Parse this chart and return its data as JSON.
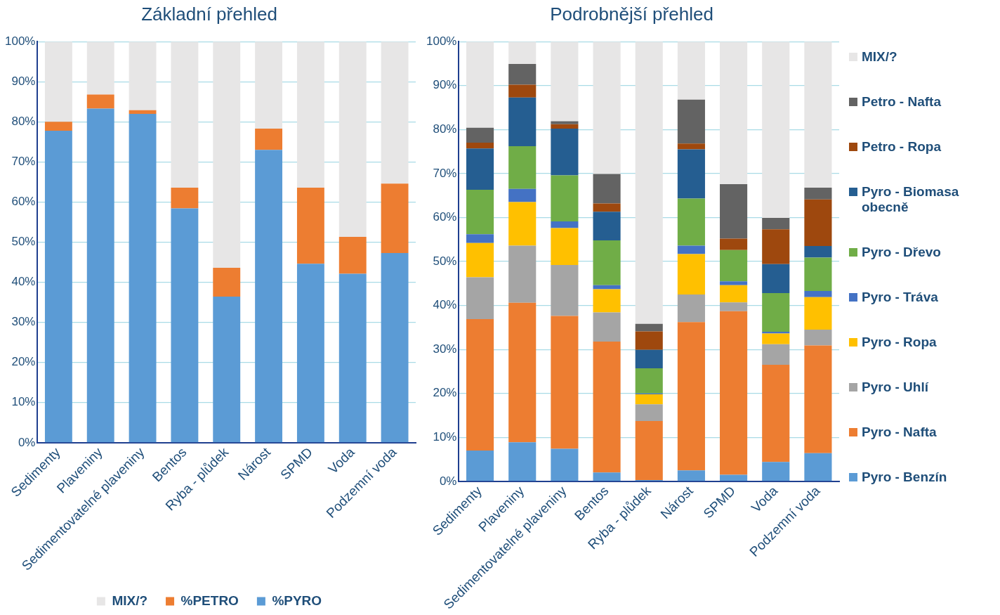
{
  "chart_data": [
    {
      "type": "bar",
      "title": "Základní přehled",
      "stacked": true,
      "grid": "y",
      "legend": "bottom",
      "categories": [
        "Sedimenty",
        "Plaveniny",
        "Sedimentovatelné plaveniny",
        "Bentos",
        "Ryba - plůdek",
        "Nárost",
        "SPMD",
        "Voda",
        "Podzemní voda"
      ],
      "ylim": [
        0,
        100
      ],
      "yticks": [
        {
          "value": 0,
          "label": "0%"
        },
        {
          "value": 10,
          "label": "10%"
        },
        {
          "value": 20,
          "label": "20%"
        },
        {
          "value": 30,
          "label": "30%"
        },
        {
          "value": 40,
          "label": "40%"
        },
        {
          "value": 50,
          "label": "50%"
        },
        {
          "value": 60,
          "label": "60%"
        },
        {
          "value": 70,
          "label": "70%"
        },
        {
          "value": 80,
          "label": "80%"
        },
        {
          "value": 90,
          "label": "90%"
        },
        {
          "value": 100,
          "label": "100%"
        }
      ],
      "series": [
        {
          "name": "%PYRO",
          "color": "#5b9bd5",
          "values": [
            77.8,
            83.3,
            82.0,
            58.4,
            36.4,
            73.0,
            44.6,
            42.1,
            47.3
          ]
        },
        {
          "name": "%PETRO",
          "color": "#ed7d31",
          "values": [
            2.2,
            3.5,
            0.9,
            5.2,
            7.2,
            5.3,
            19.0,
            9.2,
            17.3
          ]
        },
        {
          "name": "MIX/?",
          "color": "#e7e6e6",
          "values": [
            20.0,
            13.2,
            17.1,
            36.4,
            56.4,
            21.7,
            36.4,
            48.7,
            35.4
          ]
        }
      ]
    },
    {
      "type": "bar",
      "title": "Podrobnější přehled",
      "stacked": true,
      "grid": "y",
      "legend": "right",
      "categories": [
        "Sedimenty",
        "Plaveniny",
        "Sedimentovatelné plaveniny",
        "Bentos",
        "Ryba - plůdek",
        "Nárost",
        "SPMD",
        "Voda",
        "Podzemní voda"
      ],
      "ylim": [
        0,
        100
      ],
      "yticks": [
        {
          "value": 0,
          "label": "0%"
        },
        {
          "value": 10,
          "label": "10%"
        },
        {
          "value": 20,
          "label": "20%"
        },
        {
          "value": 30,
          "label": "30%"
        },
        {
          "value": 40,
          "label": "40%"
        },
        {
          "value": 50,
          "label": "50%"
        },
        {
          "value": 60,
          "label": "60%"
        },
        {
          "value": 70,
          "label": "70%"
        },
        {
          "value": 80,
          "label": "80%"
        },
        {
          "value": 90,
          "label": "90%"
        },
        {
          "value": 100,
          "label": "100%"
        }
      ],
      "series": [
        {
          "name": "Pyro - Benzín",
          "color": "#5b9bd5",
          "values": [
            7.0,
            8.9,
            7.4,
            2.0,
            0.3,
            2.5,
            1.5,
            4.4,
            6.4
          ]
        },
        {
          "name": "Pyro - Nafta",
          "color": "#ed7d31",
          "values": [
            29.9,
            31.7,
            30.2,
            29.8,
            13.4,
            33.7,
            37.2,
            22.1,
            24.5
          ]
        },
        {
          "name": "Pyro - Uhlí",
          "color": "#a5a5a5",
          "values": [
            9.5,
            13.0,
            11.6,
            6.6,
            3.8,
            6.3,
            2.0,
            4.7,
            3.6
          ]
        },
        {
          "name": "Pyro - Ropa",
          "color": "#ffc000",
          "values": [
            7.8,
            9.9,
            8.4,
            5.3,
            2.3,
            9.2,
            3.9,
            2.4,
            7.4
          ]
        },
        {
          "name": "Pyro - Tráva",
          "color": "#4472c4",
          "values": [
            2.0,
            3.0,
            1.5,
            0.9,
            0.2,
            1.9,
            0.9,
            0.4,
            1.4
          ]
        },
        {
          "name": "Pyro - Dřevo",
          "color": "#70ad47",
          "values": [
            10.1,
            9.7,
            10.5,
            10.2,
            5.7,
            10.7,
            7.1,
            8.8,
            7.6
          ]
        },
        {
          "name": "Pyro - Biomasa obecně",
          "color": "#255e91",
          "values": [
            9.4,
            11.1,
            10.6,
            6.5,
            4.2,
            11.2,
            0,
            6.6,
            2.6
          ]
        },
        {
          "name": "Petro - Ropa",
          "color": "#9e480e",
          "values": [
            1.3,
            2.9,
            1.0,
            1.9,
            4.2,
            1.3,
            2.6,
            7.9,
            10.6
          ]
        },
        {
          "name": "Petro - Nafta",
          "color": "#636363",
          "values": [
            3.4,
            4.7,
            0.7,
            6.7,
            1.7,
            10.0,
            12.4,
            2.6,
            2.7
          ]
        },
        {
          "name": "MIX/?",
          "color": "#e7e6e6",
          "values": [
            19.6,
            5.1,
            18.1,
            30.1,
            64.2,
            13.2,
            32.4,
            40.1,
            33.2
          ]
        }
      ]
    }
  ]
}
